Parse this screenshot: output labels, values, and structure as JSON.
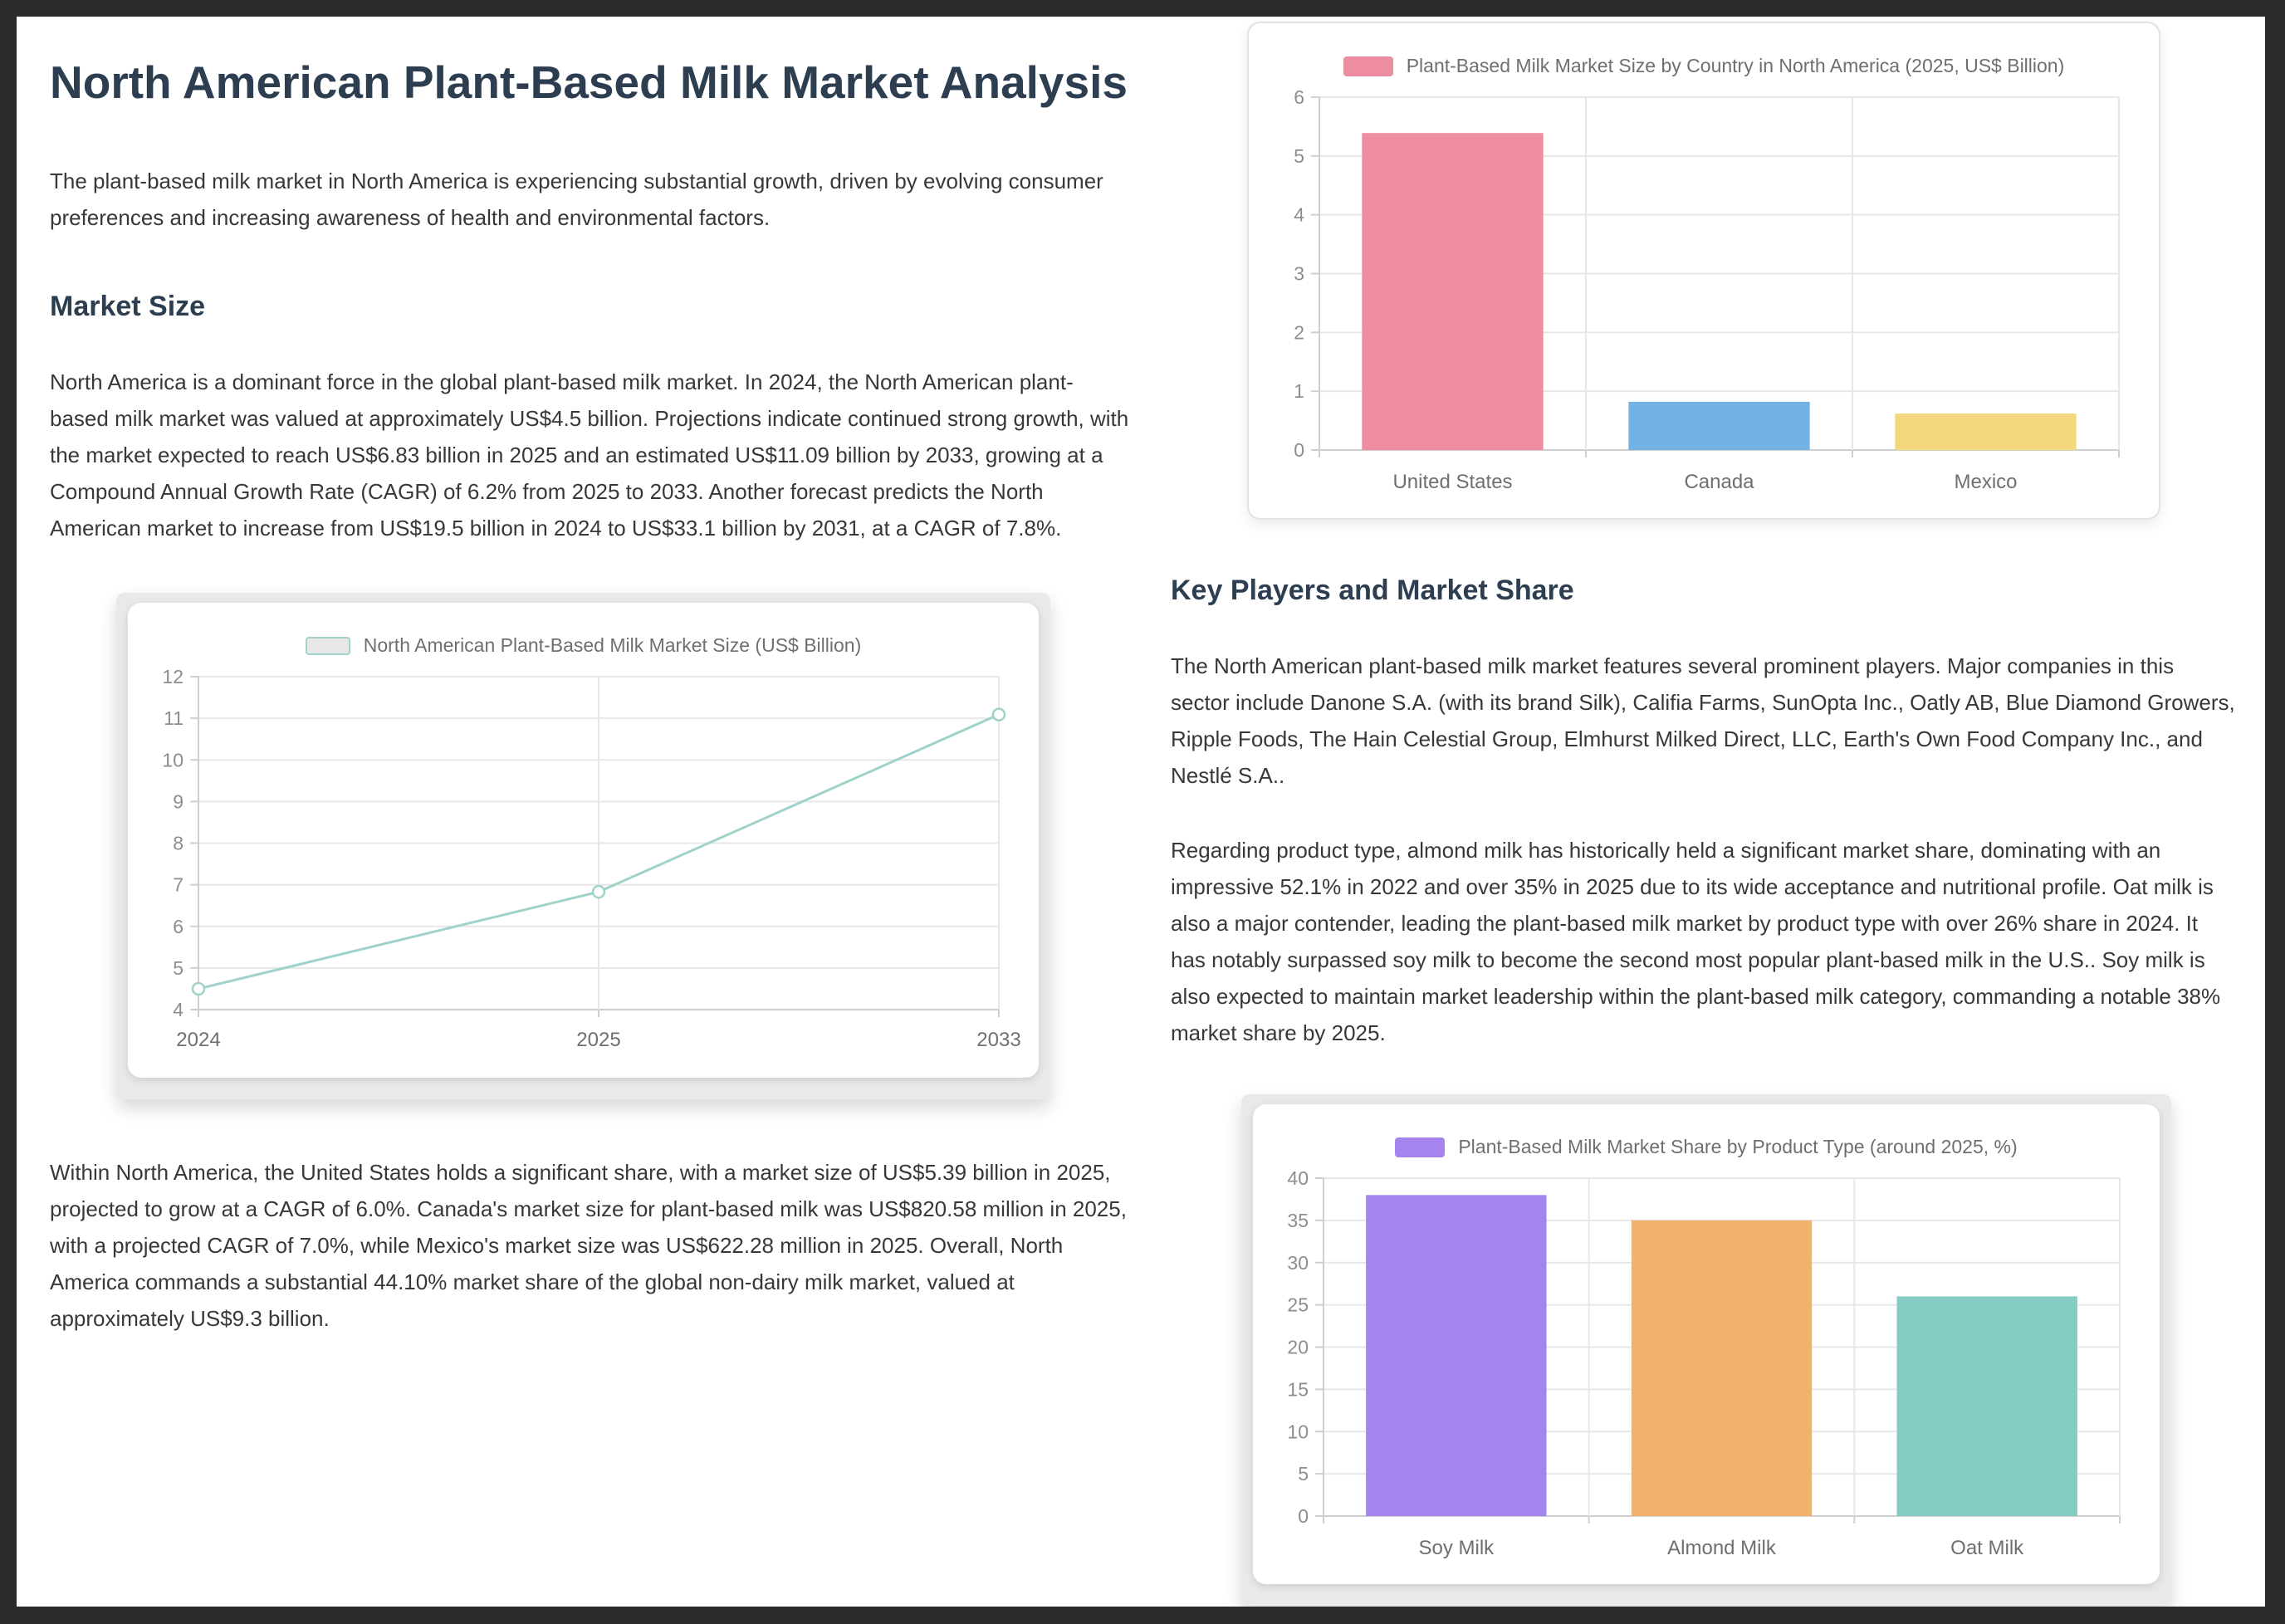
{
  "page": {
    "title": "North American Plant-Based Milk Market Analysis",
    "intro": "The plant-based milk market in North America is experiencing substantial growth, driven by evolving consumer preferences and increasing awareness of health and environmental factors.",
    "sections": {
      "market_size": {
        "heading": "Market Size",
        "para1": "North America is a dominant force in the global plant-based milk market. In 2024, the North American plant-based milk market was valued at approximately US$4.5 billion. Projections indicate continued strong growth, with the market expected to reach US$6.83 billion in 2025 and an estimated US$11.09 billion by 2033, growing at a Compound Annual Growth Rate (CAGR) of 6.2% from 2025 to 2033. Another forecast predicts the North American market to increase from US$19.5 billion in 2024 to US$33.1 billion by 2031, at a CAGR of 7.8%.",
        "para2": "Within North America, the United States holds a significant share, with a market size of US$5.39 billion in 2025, projected to grow at a CAGR of 6.0%. Canada's market size for plant-based milk was US$820.58 million in 2025, with a projected CAGR of 7.0%, while Mexico's market size was US$622.28 million in 2025. Overall, North America commands a substantial 44.10% market share of the global non-dairy milk market, valued at approximately US$9.3 billion."
      },
      "key_players": {
        "heading": "Key Players and Market Share",
        "para1": "The North American plant-based milk market features several prominent players. Major companies in this sector include Danone S.A. (with its brand Silk), Califia Farms, SunOpta Inc., Oatly AB, Blue Diamond Growers, Ripple Foods, The Hain Celestial Group, Elmhurst Milked Direct, LLC, Earth's Own Food Company Inc., and Nestlé S.A..",
        "para2": "Regarding product type, almond milk has historically held a significant market share, dominating with an impressive 52.1% in 2022 and over 35% in 2025 due to its wide acceptance and nutritional profile. Oat milk is also a major contender, leading the plant-based milk market by product type with over 26% share in 2024. It has notably surpassed soy milk to become the second most popular plant-based milk in the U.S.. Soy milk is also expected to maintain market leadership within the plant-based milk category, commanding a notable 38% market share by 2025."
      }
    }
  },
  "chart_data": [
    {
      "id": "market-size-line",
      "type": "line",
      "title": "North American Plant-Based Milk Market Size (US$ Billion)",
      "x": [
        "2024",
        "2025",
        "2033"
      ],
      "values": [
        4.5,
        6.83,
        11.09
      ],
      "ylim": [
        4,
        12
      ],
      "ytick_step": 1,
      "line_color": "#9fd2ca",
      "marker": "open-circle",
      "legend_swatch_fill": "#e8e8e8",
      "legend_position": "top-center",
      "grid": true
    },
    {
      "id": "country-market-size",
      "type": "bar",
      "title": "Plant-Based Milk Market Size by Country in North America (2025, US$ Billion)",
      "categories": [
        "United States",
        "Canada",
        "Mexico"
      ],
      "values": [
        5.39,
        0.82,
        0.62
      ],
      "bar_colors": [
        "#ee8ca0",
        "#72b2e4",
        "#f3d77e"
      ],
      "ylim": [
        0,
        6
      ],
      "ytick_step": 1,
      "legend_swatch_fill": "#ee8ca0",
      "legend_position": "top-center",
      "grid": true
    },
    {
      "id": "product-type-share",
      "type": "bar",
      "title": "Plant-Based Milk Market Share by Product Type (around 2025, %)",
      "categories": [
        "Soy Milk",
        "Almond Milk",
        "Oat Milk"
      ],
      "values": [
        38,
        35,
        26
      ],
      "bar_colors": [
        "#a584f0",
        "#f0b26d",
        "#84cbc4"
      ],
      "ylim": [
        0,
        40
      ],
      "ytick_step": 5,
      "legend_swatch_fill": "#a584f0",
      "legend_position": "top-center",
      "grid": true
    }
  ],
  "colors": {
    "frame_bg": "#2b2b2b",
    "page_bg": "#ffffff",
    "heading_text": "#2c3e50",
    "body_text": "#383838",
    "axis_text": "#8d8d8d",
    "category_text": "#6f6f6f",
    "grid_line": "#e7e7e7",
    "axis_line": "#cfcfcf",
    "panel_mat": "#e9e9e9",
    "panel_border": "#e3e3e3"
  }
}
